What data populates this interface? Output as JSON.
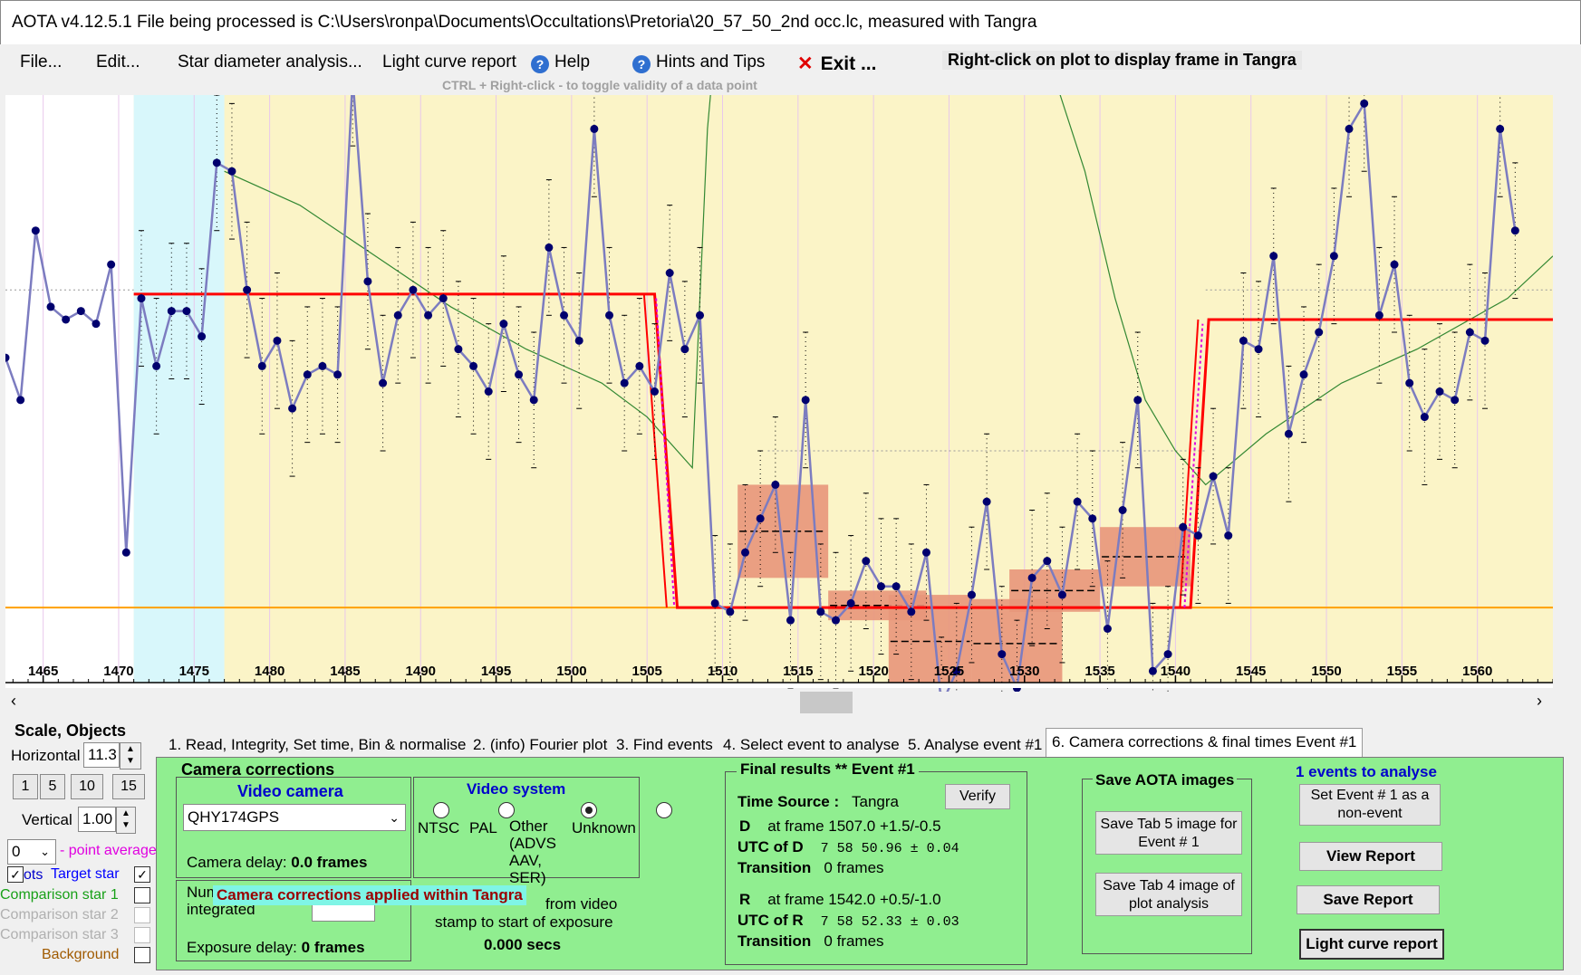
{
  "window": {
    "title": "AOTA v4.12.5.1    File being processed is C:\\Users\\ronpa\\Documents\\Occultations\\Pretoria\\20_57_50_2nd occ.lc, measured with Tangra"
  },
  "menu": {
    "file": "File...",
    "edit": "Edit...",
    "star_diameter": "Star diameter analysis...",
    "light_curve_report": "Light curve report",
    "help": "Help",
    "hints": "Hints and Tips",
    "exit": "Exit ..."
  },
  "tips": {
    "right_click": "Right-click on plot to display frame in Tangra",
    "ctrl_right_click": "CTRL + Right-click  -  to toggle validity of a data point"
  },
  "plot": {
    "x_ticks": [
      1465,
      1470,
      1475,
      1480,
      1485,
      1490,
      1495,
      1500,
      1505,
      1510,
      1515,
      1520,
      1525,
      1530,
      1535,
      1540,
      1545,
      1550,
      1555,
      1560
    ],
    "x_min": 1462.5,
    "x_max": 1565,
    "y_min": -6,
    "y_max": 64,
    "colors": {
      "background": "#fbf4c7",
      "highlight": "#d8f7fb",
      "data": "#7c7cc0",
      "point": "#00006e",
      "model": "#ff0000",
      "smooth": "#338833",
      "baseline": "#ffa000",
      "event_box": "#e8967a"
    },
    "highlight_range": [
      1471,
      1477
    ],
    "series": [
      {
        "x": 1462.5,
        "y": 33
      },
      {
        "x": 1463.5,
        "y": 28
      },
      {
        "x": 1464.5,
        "y": 48
      },
      {
        "x": 1465.5,
        "y": 39
      },
      {
        "x": 1466.5,
        "y": 37.5
      },
      {
        "x": 1467.5,
        "y": 38.5
      },
      {
        "x": 1468.5,
        "y": 37
      },
      {
        "x": 1469.5,
        "y": 44
      },
      {
        "x": 1470.5,
        "y": 10
      },
      {
        "x": 1471.5,
        "y": 40
      },
      {
        "x": 1472.5,
        "y": 32
      },
      {
        "x": 1473.5,
        "y": 38.5
      },
      {
        "x": 1474.5,
        "y": 38.5
      },
      {
        "x": 1475.5,
        "y": 35.5
      },
      {
        "x": 1476.5,
        "y": 56
      },
      {
        "x": 1477.5,
        "y": 55
      },
      {
        "x": 1478.5,
        "y": 41
      },
      {
        "x": 1479.5,
        "y": 32
      },
      {
        "x": 1480.5,
        "y": 35
      },
      {
        "x": 1481.5,
        "y": 27
      },
      {
        "x": 1482.5,
        "y": 31
      },
      {
        "x": 1483.5,
        "y": 32
      },
      {
        "x": 1484.5,
        "y": 31
      },
      {
        "x": 1485.5,
        "y": 66
      },
      {
        "x": 1486.5,
        "y": 42
      },
      {
        "x": 1487.5,
        "y": 30
      },
      {
        "x": 1488.5,
        "y": 38
      },
      {
        "x": 1489.5,
        "y": 41
      },
      {
        "x": 1490.5,
        "y": 38
      },
      {
        "x": 1491.5,
        "y": 40
      },
      {
        "x": 1492.5,
        "y": 34
      },
      {
        "x": 1493.5,
        "y": 32
      },
      {
        "x": 1494.5,
        "y": 29
      },
      {
        "x": 1495.5,
        "y": 37
      },
      {
        "x": 1496.5,
        "y": 31
      },
      {
        "x": 1497.5,
        "y": 28
      },
      {
        "x": 1498.5,
        "y": 46
      },
      {
        "x": 1499.5,
        "y": 38
      },
      {
        "x": 1500.5,
        "y": 35
      },
      {
        "x": 1501.5,
        "y": 60
      },
      {
        "x": 1502.5,
        "y": 38
      },
      {
        "x": 1503.5,
        "y": 30
      },
      {
        "x": 1504.5,
        "y": 32
      },
      {
        "x": 1505.5,
        "y": 29
      },
      {
        "x": 1506.5,
        "y": 43
      },
      {
        "x": 1507.5,
        "y": 34
      },
      {
        "x": 1508.5,
        "y": 38
      },
      {
        "x": 1509.5,
        "y": 4
      },
      {
        "x": 1510.5,
        "y": 3
      },
      {
        "x": 1511.5,
        "y": 10
      },
      {
        "x": 1512.5,
        "y": 14
      },
      {
        "x": 1513.5,
        "y": 18
      },
      {
        "x": 1514.5,
        "y": 2
      },
      {
        "x": 1515.5,
        "y": 28
      },
      {
        "x": 1516.5,
        "y": 3
      },
      {
        "x": 1517.5,
        "y": 2
      },
      {
        "x": 1518.5,
        "y": 4
      },
      {
        "x": 1519.5,
        "y": 9
      },
      {
        "x": 1520.5,
        "y": 6
      },
      {
        "x": 1521.5,
        "y": 6
      },
      {
        "x": 1522.5,
        "y": 3
      },
      {
        "x": 1523.5,
        "y": 10
      },
      {
        "x": 1524.5,
        "y": -8
      },
      {
        "x": 1525.5,
        "y": -4
      },
      {
        "x": 1526.5,
        "y": 5
      },
      {
        "x": 1527.5,
        "y": 16
      },
      {
        "x": 1528.5,
        "y": -2
      },
      {
        "x": 1529.5,
        "y": -6
      },
      {
        "x": 1530.5,
        "y": 7
      },
      {
        "x": 1531.5,
        "y": 9
      },
      {
        "x": 1532.5,
        "y": 5
      },
      {
        "x": 1533.5,
        "y": 16
      },
      {
        "x": 1534.5,
        "y": 14
      },
      {
        "x": 1535.5,
        "y": 1
      },
      {
        "x": 1536.5,
        "y": 15
      },
      {
        "x": 1537.5,
        "y": 28
      },
      {
        "x": 1538.5,
        "y": -4
      },
      {
        "x": 1539.5,
        "y": -2
      },
      {
        "x": 1540.5,
        "y": 13
      },
      {
        "x": 1541.5,
        "y": 12
      },
      {
        "x": 1542.5,
        "y": 19
      },
      {
        "x": 1543.5,
        "y": 12
      },
      {
        "x": 1544.5,
        "y": 35
      },
      {
        "x": 1545.5,
        "y": 34
      },
      {
        "x": 1546.5,
        "y": 45
      },
      {
        "x": 1547.5,
        "y": 24
      },
      {
        "x": 1548.5,
        "y": 31
      },
      {
        "x": 1549.5,
        "y": 36
      },
      {
        "x": 1550.5,
        "y": 45
      },
      {
        "x": 1551.5,
        "y": 60
      },
      {
        "x": 1552.5,
        "y": 63
      },
      {
        "x": 1553.5,
        "y": 38
      },
      {
        "x": 1554.5,
        "y": 44
      },
      {
        "x": 1555.5,
        "y": 30
      },
      {
        "x": 1556.5,
        "y": 26
      },
      {
        "x": 1557.5,
        "y": 29
      },
      {
        "x": 1558.5,
        "y": 28
      },
      {
        "x": 1559.5,
        "y": 36
      },
      {
        "x": 1560.5,
        "y": 35
      },
      {
        "x": 1561.5,
        "y": 60
      },
      {
        "x": 1562.5,
        "y": 48
      }
    ],
    "model": [
      [
        1471,
        40.5
      ],
      [
        1505.5,
        40.5
      ],
      [
        1507,
        3.5
      ],
      [
        1541,
        3.5
      ],
      [
        1542.2,
        37.5
      ],
      [
        1565,
        37.5
      ]
    ],
    "baseline_y": 3.5,
    "event_boxes": [
      [
        1511,
        1517,
        7,
        18
      ],
      [
        1517,
        1523.5,
        2,
        5.5
      ],
      [
        1521,
        1526.5,
        -6,
        5
      ],
      [
        1526.5,
        1532.5,
        -6,
        4.5
      ],
      [
        1529,
        1535,
        3,
        8
      ],
      [
        1535,
        1541,
        6,
        13
      ]
    ]
  },
  "tabs": {
    "t1": "1.  Read, Integrity, Set time, Bin & normalise",
    "t2": "2. (info)  Fourier plot",
    "t3": "3. Find events",
    "t4": "4. Select event to analyse",
    "t5": "5. Analyse event #1",
    "t6": "6. Camera corrections & final times Event #1"
  },
  "left": {
    "scale_title": "Scale,  Objects",
    "horizontal_label": "Horizontal",
    "horizontal_value": "11.3",
    "zoom": [
      "1",
      "5",
      "10",
      "15"
    ],
    "vertical_label": "Vertical",
    "vertical_value": "1.00",
    "avg_value": "0",
    "avg_label": "- point average",
    "plots_label": "ots",
    "target": "Target star",
    "comp1": "Comparison star 1",
    "comp2": "Comparison star 2",
    "comp3": "Comparison star 3",
    "background": "Background"
  },
  "camera": {
    "section_title": "Camera corrections",
    "video_camera_title": "Video camera",
    "camera_name": "QHY174GPS",
    "camera_delay_label": "Camera delay:",
    "camera_delay_value": "0.0 frames",
    "video_system_title": "Video system",
    "ntsc": "NTSC",
    "pal": "PAL",
    "other": "Other (ADVS AAV, SER)",
    "unknown": "Unknown",
    "num_frames_label": "Num frames integrated",
    "exposure_delay_label": "Exposure delay:",
    "exposure_delay_value": "0 frames",
    "from_video": "from video",
    "stamp_text": "stamp to start of exposure",
    "secs": "0.000 secs",
    "applied_banner": "Camera corrections applied within Tangra"
  },
  "results": {
    "title": "Final results  **  Event #1",
    "verify": "Verify",
    "time_source_label": "Time Source :",
    "time_source_value": "Tangra",
    "D": "D",
    "d_frame": "at frame 1507.0  +1.5/-0.5",
    "utc_d_label": "UTC of D",
    "utc_d": "7 58 50.96  ± 0.04",
    "transition_label": "Transition",
    "transition_d": "0 frames",
    "R": "R",
    "r_frame": "at frame 1542.0  +0.5/-1.0",
    "utc_r_label": "UTC of R",
    "utc_r": "7 58 52.33  ± 0.03",
    "transition_r": "0 frames"
  },
  "save": {
    "title": "Save AOTA images",
    "tab5": "Save Tab 5 image for Event # 1",
    "tab4": "Save Tab 4 image of plot analysis"
  },
  "events": {
    "title": "1  events to analyse",
    "set_event": "Set Event # 1 as a non-event",
    "view_report": "View Report",
    "save_report": "Save Report",
    "lc_report": "Light curve report"
  }
}
